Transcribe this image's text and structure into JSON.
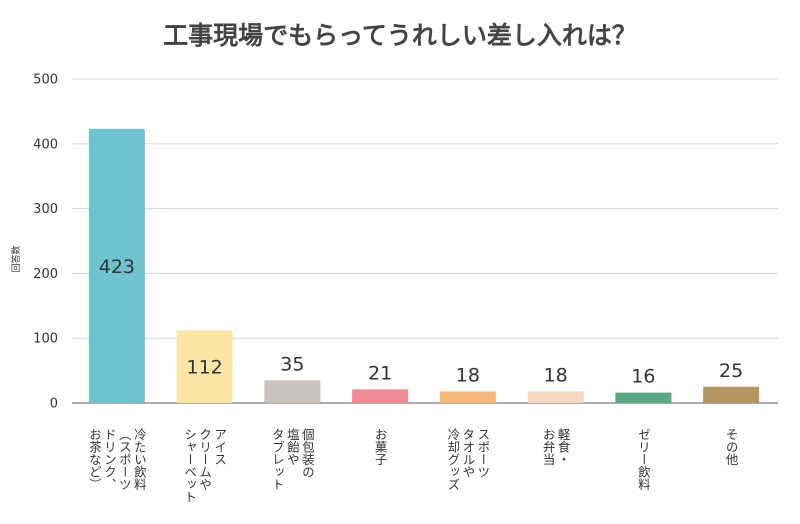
{
  "chart_data": {
    "type": "bar",
    "title": "工事現場でもらってうれしい差し入れは？",
    "ylabel": "回答数",
    "xlabel": "",
    "ylim": [
      0,
      500
    ],
    "yticks": [
      0,
      100,
      200,
      300,
      400,
      500
    ],
    "grid": true,
    "categories": [
      [
        "冷たい飲料",
        "（スポーツ",
        "ドリンク、",
        "お茶など）"
      ],
      [
        "アイス",
        "クリームや",
        "シャーベット"
      ],
      [
        "個包装の",
        "塩飴や",
        "タブレット"
      ],
      [
        "お菓子"
      ],
      [
        "スポーツ",
        "タオルや",
        "冷却グッズ"
      ],
      [
        "軽食・",
        "お弁当"
      ],
      [
        "ゼリー飲料"
      ],
      [
        "その他"
      ]
    ],
    "values": [
      423,
      112,
      35,
      21,
      18,
      18,
      16,
      25
    ],
    "colors": [
      "#6fc3cf",
      "#fbe6a6",
      "#c9c3c0",
      "#ef8a97",
      "#f8b77a",
      "#f7d7c1",
      "#5aa888",
      "#b69764"
    ],
    "label_colors": [
      "#1f4f57",
      "#6e5a1a",
      "#333333",
      "#333333",
      "#333333",
      "#333333",
      "#333333",
      "#333333"
    ]
  }
}
